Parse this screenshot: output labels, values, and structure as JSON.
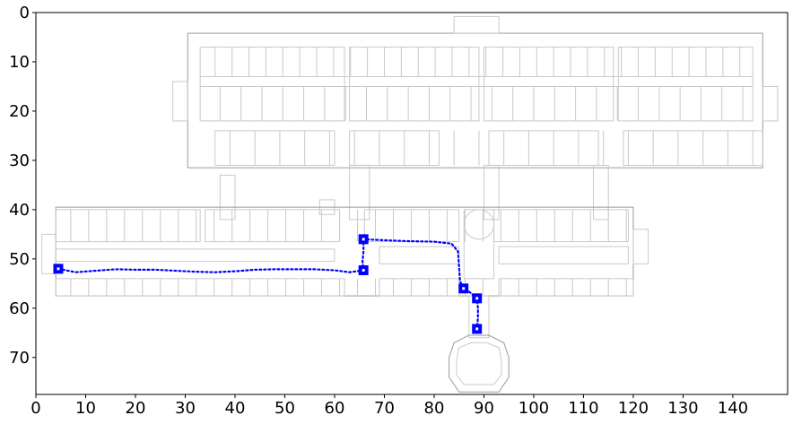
{
  "chart_data": {
    "type": "scatter",
    "title": "",
    "xlabel": "",
    "ylabel": "",
    "xlim": [
      0,
      151
    ],
    "ylim": [
      77.5,
      0
    ],
    "y_inverted": true,
    "grid": false,
    "legend": "none",
    "x_ticks": [
      0,
      10,
      20,
      30,
      40,
      50,
      60,
      70,
      80,
      90,
      100,
      110,
      120,
      130,
      140
    ],
    "y_ticks": [
      0,
      10,
      20,
      30,
      40,
      50,
      60,
      70
    ],
    "background": "floor-plan",
    "path_color": "#0000ff",
    "waypoints": [
      {
        "x": 4.5,
        "y": 52.0
      },
      {
        "x": 65.8,
        "y": 52.3
      },
      {
        "x": 65.8,
        "y": 46.0
      },
      {
        "x": 85.9,
        "y": 56.0
      },
      {
        "x": 88.6,
        "y": 58.0
      },
      {
        "x": 88.6,
        "y": 64.2
      }
    ],
    "path": [
      {
        "x": 4.5,
        "y": 52.0
      },
      {
        "x": 8,
        "y": 52.7
      },
      {
        "x": 12,
        "y": 52.4
      },
      {
        "x": 16,
        "y": 52.1
      },
      {
        "x": 20,
        "y": 52.2
      },
      {
        "x": 24,
        "y": 52.2
      },
      {
        "x": 28,
        "y": 52.4
      },
      {
        "x": 32,
        "y": 52.6
      },
      {
        "x": 36,
        "y": 52.7
      },
      {
        "x": 40,
        "y": 52.5
      },
      {
        "x": 44,
        "y": 52.2
      },
      {
        "x": 48,
        "y": 52.1
      },
      {
        "x": 52,
        "y": 52.1
      },
      {
        "x": 56,
        "y": 52.1
      },
      {
        "x": 60,
        "y": 52.3
      },
      {
        "x": 63,
        "y": 52.7
      },
      {
        "x": 65.8,
        "y": 52.3
      },
      {
        "x": 65.6,
        "y": 50.5
      },
      {
        "x": 65.8,
        "y": 48.5
      },
      {
        "x": 65.8,
        "y": 46.0
      },
      {
        "x": 70,
        "y": 46.2
      },
      {
        "x": 75,
        "y": 46.4
      },
      {
        "x": 80,
        "y": 46.5
      },
      {
        "x": 83.5,
        "y": 46.9
      },
      {
        "x": 84.8,
        "y": 48.5
      },
      {
        "x": 85.0,
        "y": 51.5
      },
      {
        "x": 85.2,
        "y": 54.5
      },
      {
        "x": 85.9,
        "y": 56.0
      },
      {
        "x": 87.2,
        "y": 56.8
      },
      {
        "x": 88.6,
        "y": 58.0
      },
      {
        "x": 88.8,
        "y": 60.0
      },
      {
        "x": 88.8,
        "y": 62.0
      },
      {
        "x": 88.6,
        "y": 64.2
      }
    ]
  }
}
